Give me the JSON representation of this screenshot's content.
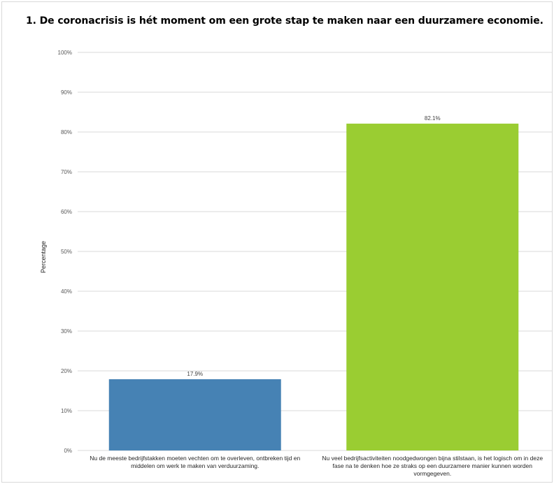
{
  "title": "1. De coronacrisis is hét moment om een grote stap te maken naar een duurzamere economie.",
  "colors": {
    "gridline": "#d9d9d9",
    "tick_text": "#595959"
  },
  "chart_data": {
    "type": "bar",
    "ylabel": "Percentage",
    "ylim": [
      0,
      100
    ],
    "yticks": [
      "0%",
      "10%",
      "20%",
      "30%",
      "40%",
      "50%",
      "60%",
      "70%",
      "80%",
      "90%",
      "100%"
    ],
    "grid": true,
    "categories": [
      "Nu de meeste bedrijfstakken moeten vechten om te overleven, ontbreken tijd en middelen om werk te maken van verduurzaming.",
      "Nu veel bedrijfsactiviteiten noodgedwongen bijna stilstaan, is het logisch om in deze fase na te denken hoe ze straks op een duurzamere manier kunnen worden vormgegeven."
    ],
    "values": [
      17.9,
      82.1
    ],
    "data_labels": [
      "17.9%",
      "82.1%"
    ],
    "bar_colors": [
      "#4682b4",
      "#9acd32"
    ]
  }
}
